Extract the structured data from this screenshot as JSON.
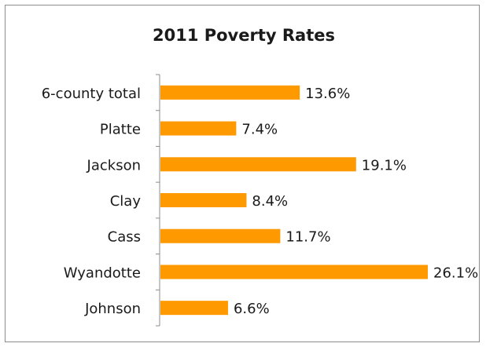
{
  "chart_data": {
    "type": "bar",
    "orientation": "horizontal",
    "title": "2011 Poverty Rates",
    "xlabel": "",
    "ylabel": "",
    "categories": [
      "6-county total",
      "Platte",
      "Jackson",
      "Clay",
      "Cass",
      "Wyandotte",
      "Johnson"
    ],
    "values": [
      13.6,
      7.4,
      19.1,
      8.4,
      11.7,
      26.1,
      6.6
    ],
    "value_labels": [
      "13.6%",
      "7.4%",
      "19.1%",
      "8.4%",
      "11.7%",
      "26.1%",
      "6.6%"
    ],
    "xlim": [
      0,
      26.1
    ],
    "bar_color": "#ff9900",
    "axis_color": "#8c8c8c",
    "grid": false,
    "legend": "none"
  }
}
